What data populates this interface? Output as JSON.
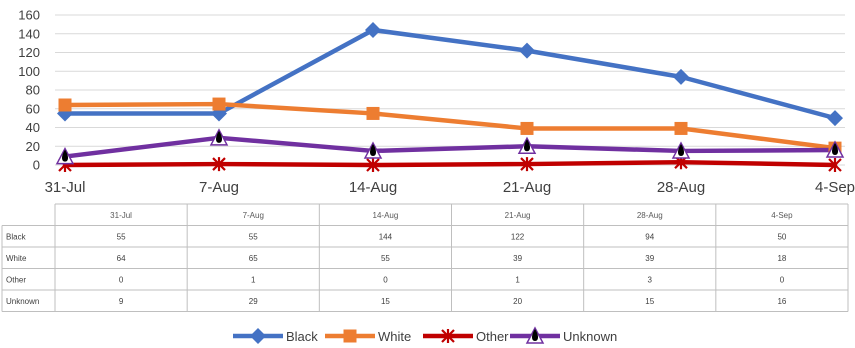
{
  "chart_data": {
    "type": "line",
    "categories": [
      "31-Jul",
      "7-Aug",
      "14-Aug",
      "21-Aug",
      "28-Aug",
      "4-Sep"
    ],
    "ylim": [
      0,
      160
    ],
    "yticks": [
      0,
      20,
      40,
      60,
      80,
      100,
      120,
      140,
      160
    ],
    "grid": true,
    "legend_position": "bottom",
    "series": [
      {
        "name": "Black",
        "values": [
          55,
          55,
          144,
          122,
          94,
          50
        ],
        "color": "#4472C4",
        "marker": "diamond"
      },
      {
        "name": "White",
        "values": [
          64,
          65,
          55,
          39,
          39,
          18
        ],
        "color": "#ED7D31",
        "marker": "square"
      },
      {
        "name": "Other",
        "values": [
          0,
          1,
          0,
          1,
          3,
          0
        ],
        "color": "#C00000",
        "marker": "star"
      },
      {
        "name": "Unknown",
        "values": [
          9,
          29,
          15,
          20,
          15,
          16
        ],
        "color": "#7030A0",
        "marker": "triangle"
      }
    ]
  }
}
